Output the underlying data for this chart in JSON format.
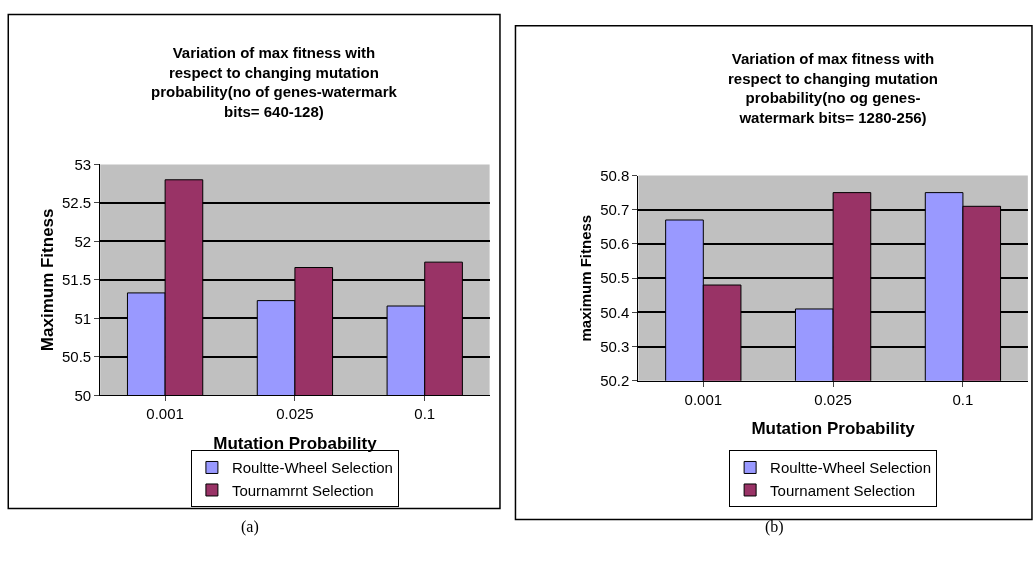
{
  "chart_data": [
    {
      "type": "bar",
      "title": "Variation of max fitness with respect to changing mutation probability(no of genes-watermark bits= 640-128)",
      "xlabel": "Mutation Probability",
      "ylabel": "Maximum Fitness",
      "categories": [
        "0.001",
        "0.025",
        "0.1"
      ],
      "series": [
        {
          "name": "Roultte-Wheel Selection",
          "color": "#9999ff",
          "values": [
            51.33,
            51.23,
            51.16
          ]
        },
        {
          "name": "Tournamrnt Selection",
          "color": "#993366",
          "values": [
            52.8,
            51.66,
            51.73
          ]
        }
      ],
      "ylim": [
        50,
        53
      ],
      "yticks": [
        50,
        {
          "value": 50.5,
          "label": "50.5"
        },
        51,
        {
          "value": 51.5,
          "label": "51.5"
        },
        52,
        {
          "value": 52.5,
          "label": "52.5"
        },
        53
      ],
      "grid": "y",
      "legend": "bottom",
      "annotations": [
        "(a)"
      ]
    },
    {
      "type": "bar",
      "title": "Variation of max fitness with respect to changing mutation probability(no og genes-watermark bits= 1280-256)",
      "xlabel": "Mutation Probability",
      "ylabel": "maximum Fitness",
      "categories": [
        "0.001",
        "0.025",
        "0.1"
      ],
      "series": [
        {
          "name": "Roultte-Wheel Selection",
          "color": "#9999ff",
          "values": [
            50.67,
            50.41,
            50.75
          ]
        },
        {
          "name": "Tournament Selection",
          "color": "#993366",
          "values": [
            50.48,
            50.75,
            50.71
          ]
        }
      ],
      "ylim": [
        50.2,
        50.8
      ],
      "yticks": [
        {
          "value": 50.2,
          "label": "50.2"
        },
        {
          "value": 50.3,
          "label": "50.3"
        },
        {
          "value": 50.4,
          "label": "50.4"
        },
        {
          "value": 50.5,
          "label": "50.5"
        },
        {
          "value": 50.6,
          "label": "50.6"
        },
        {
          "value": 50.7,
          "label": "50.7"
        },
        {
          "value": 50.8,
          "label": "50.8"
        }
      ],
      "grid": "y",
      "legend": "bottom",
      "annotations": [
        "(b)"
      ]
    }
  ]
}
